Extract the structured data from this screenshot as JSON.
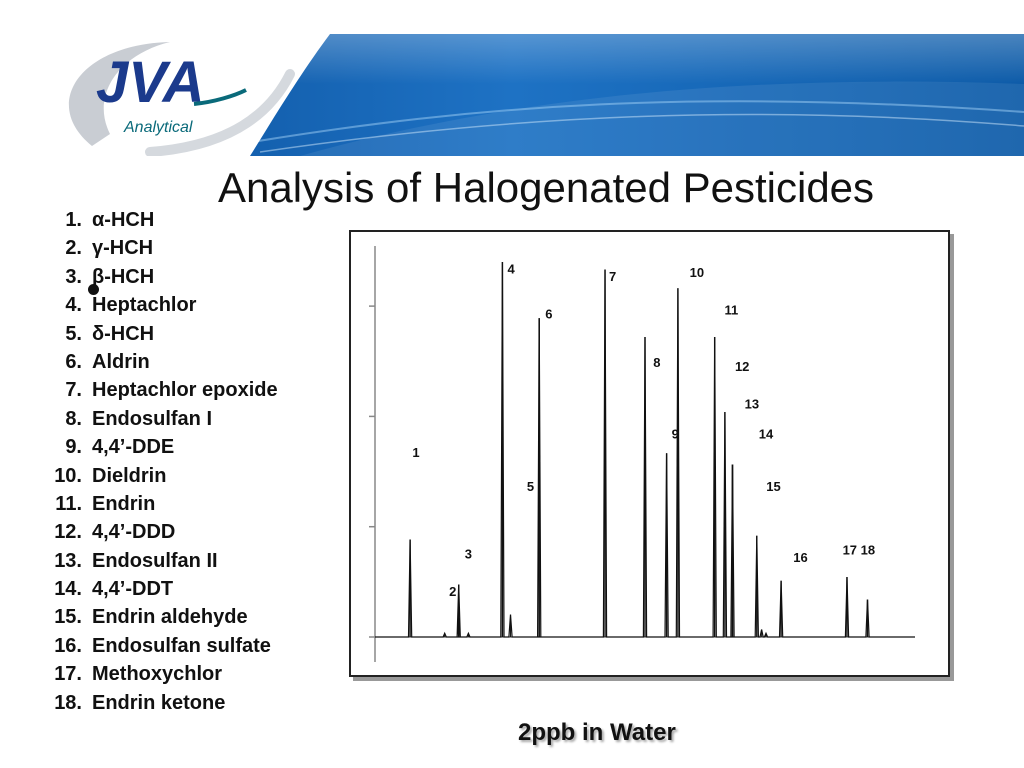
{
  "header": {
    "logo_title": "JVA",
    "logo_subtitle": "Analytical",
    "brand_colors": {
      "blue_dark": "#0a5aa8",
      "blue_light": "#4fa3e0",
      "logo_navy": "#1b3a8c",
      "logo_teal": "#0a6a7a"
    }
  },
  "slide": {
    "title": "Analysis of Halogenated Pesticides",
    "caption": "2ppb in Water"
  },
  "compounds": [
    {
      "num": "1.",
      "name": "α-HCH"
    },
    {
      "num": "2.",
      "name": "γ-HCH"
    },
    {
      "num": "3.",
      "name": "β-HCH"
    },
    {
      "num": "4.",
      "name": "Heptachlor"
    },
    {
      "num": "5.",
      "name": "δ-HCH"
    },
    {
      "num": "6.",
      "name": "Aldrin"
    },
    {
      "num": "7.",
      "name": "Heptachlor epoxide"
    },
    {
      "num": "8.",
      "name": "Endosulfan I"
    },
    {
      "num": "9.",
      "name": "4,4’-DDE"
    },
    {
      "num": "10.",
      "name": "Dieldrin"
    },
    {
      "num": "11.",
      "name": "Endrin"
    },
    {
      "num": "12.",
      "name": "4,4’-DDD"
    },
    {
      "num": "13.",
      "name": "Endosulfan II"
    },
    {
      "num": "14.",
      "name": "4,4’-DDT"
    },
    {
      "num": "15.",
      "name": "Endrin aldehyde"
    },
    {
      "num": "16.",
      "name": "Endosulfan sulfate"
    },
    {
      "num": "17.",
      "name": "Methoxychlor"
    },
    {
      "num": "18.",
      "name": "Endrin ketone"
    }
  ],
  "chart_data": {
    "type": "line",
    "title": "",
    "xlabel": "",
    "ylabel": "",
    "xlim": [
      0,
      100
    ],
    "ylim": [
      0,
      100
    ],
    "grid": false,
    "axis_ticks": 4,
    "peaks": [
      {
        "label": "1",
        "x": 6.5,
        "height": 26
      },
      {
        "label": "2",
        "x": 15.5,
        "height": 14
      },
      {
        "label": "3",
        "x": 15.5,
        "height": 5
      },
      {
        "label": "4",
        "x": 23.6,
        "height": 100
      },
      {
        "label": "5",
        "x": 30.4,
        "height": 85
      },
      {
        "label": "6",
        "x": 30.4,
        "height": 85
      },
      {
        "label": "7",
        "x": 42.6,
        "height": 98
      },
      {
        "label": "8",
        "x": 50.0,
        "height": 80
      },
      {
        "label": "9",
        "x": 54.0,
        "height": 49
      },
      {
        "label": "10",
        "x": 56.1,
        "height": 93
      },
      {
        "label": "11",
        "x": 62.9,
        "height": 80
      },
      {
        "label": "12",
        "x": 64.8,
        "height": 60
      },
      {
        "label": "13",
        "x": 66.2,
        "height": 46
      },
      {
        "label": "14",
        "x": 66.2,
        "height": 46
      },
      {
        "label": "15",
        "x": 70.7,
        "height": 27
      },
      {
        "label": "16",
        "x": 75.2,
        "height": 15
      },
      {
        "label": "17",
        "x": 87.4,
        "height": 16
      },
      {
        "label": "18",
        "x": 91.2,
        "height": 10
      }
    ],
    "minor_peaks": [
      {
        "x": 12.9,
        "height": 1
      },
      {
        "x": 17.3,
        "height": 1
      },
      {
        "x": 25.1,
        "height": 6
      },
      {
        "x": 71.6,
        "height": 2
      },
      {
        "x": 72.4,
        "height": 1
      }
    ],
    "peak_labels": [
      {
        "text": "1",
        "x": 7.6,
        "y": 48
      },
      {
        "text": "2",
        "x": 14.4,
        "y": 11
      },
      {
        "text": "3",
        "x": 17.3,
        "y": 21
      },
      {
        "text": "4",
        "x": 25.2,
        "y": 97
      },
      {
        "text": "5",
        "x": 28.8,
        "y": 39
      },
      {
        "text": "6",
        "x": 32.2,
        "y": 85
      },
      {
        "text": "7",
        "x": 44.0,
        "y": 95
      },
      {
        "text": "8",
        "x": 52.2,
        "y": 72
      },
      {
        "text": "9",
        "x": 55.6,
        "y": 53
      },
      {
        "text": "10",
        "x": 59.6,
        "y": 96
      },
      {
        "text": "11",
        "x": 66.0,
        "y": 86
      },
      {
        "text": "12",
        "x": 68.0,
        "y": 71
      },
      {
        "text": "13",
        "x": 69.8,
        "y": 61
      },
      {
        "text": "14",
        "x": 72.4,
        "y": 53
      },
      {
        "text": "15",
        "x": 73.8,
        "y": 39
      },
      {
        "text": "16",
        "x": 78.8,
        "y": 20
      },
      {
        "text": "17 18",
        "x": 89.6,
        "y": 22
      }
    ]
  }
}
